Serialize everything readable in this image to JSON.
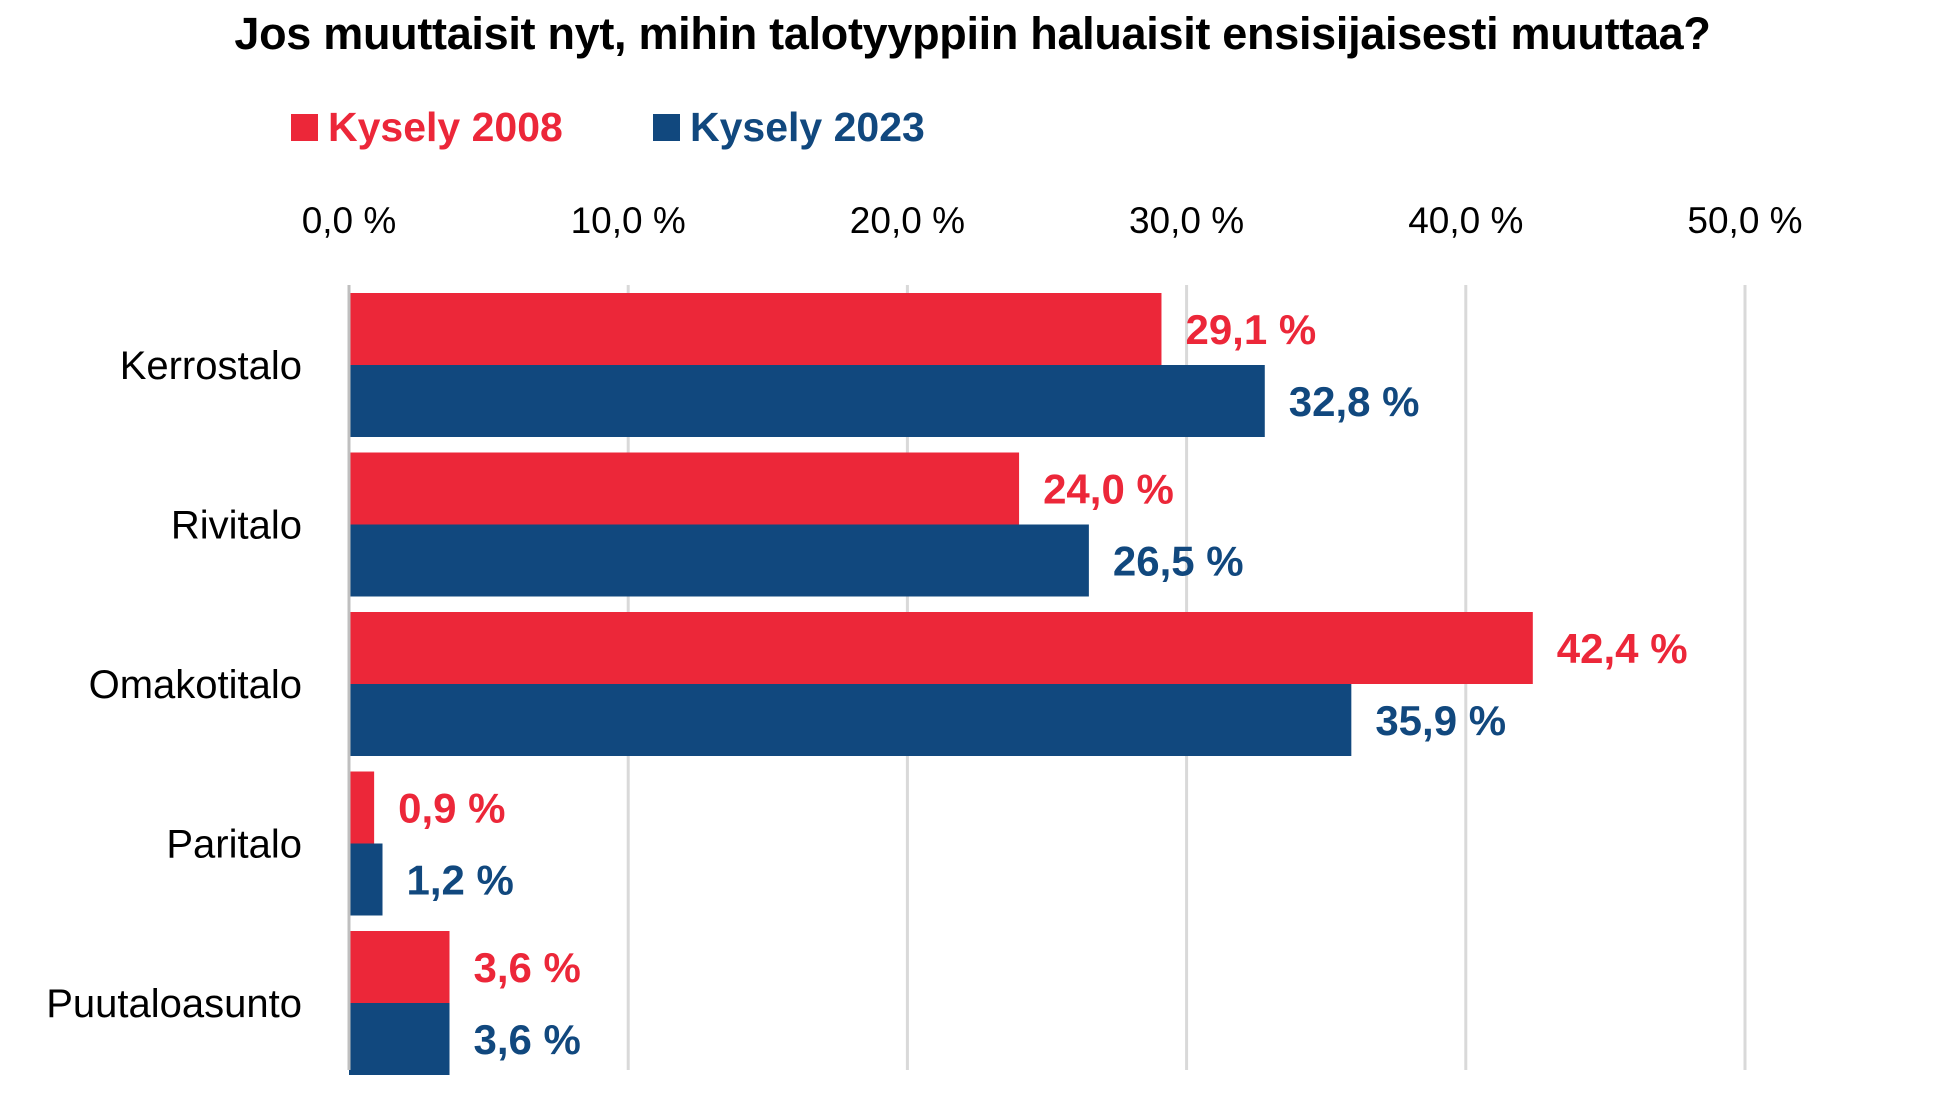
{
  "chart_data": {
    "type": "bar",
    "orientation": "horizontal",
    "title": "Jos muuttaisit nyt, mihin talotyyppiin haluaisit ensisijaisesti muuttaa?",
    "categories": [
      "Kerrostalo",
      "Rivitalo",
      "Omakotitalo",
      "Paritalo",
      "Puutaloasunto"
    ],
    "series": [
      {
        "name": "Kysely 2008",
        "color": "#EC2739",
        "values": [
          29.1,
          24.0,
          42.4,
          0.9,
          3.6
        ],
        "labels": [
          "29,1 %",
          "24,0 %",
          "42,4 %",
          "0,9 %",
          "3,6 %"
        ]
      },
      {
        "name": "Kysely 2023",
        "color": "#11487E",
        "values": [
          32.8,
          26.5,
          35.9,
          1.2,
          3.6
        ],
        "labels": [
          "32,8 %",
          "26,5 %",
          "35,9 %",
          "1,2 %",
          "3,6 %"
        ]
      }
    ],
    "xlim": [
      0,
      50
    ],
    "xticks": [
      0,
      10,
      20,
      30,
      40,
      50
    ],
    "xtick_labels": [
      "0,0 %",
      "10,0 %",
      "20,0 %",
      "30,0 %",
      "40,0 %",
      "50,0 %"
    ],
    "axis_position": "top",
    "legend_position": "top-left",
    "grid": true
  }
}
